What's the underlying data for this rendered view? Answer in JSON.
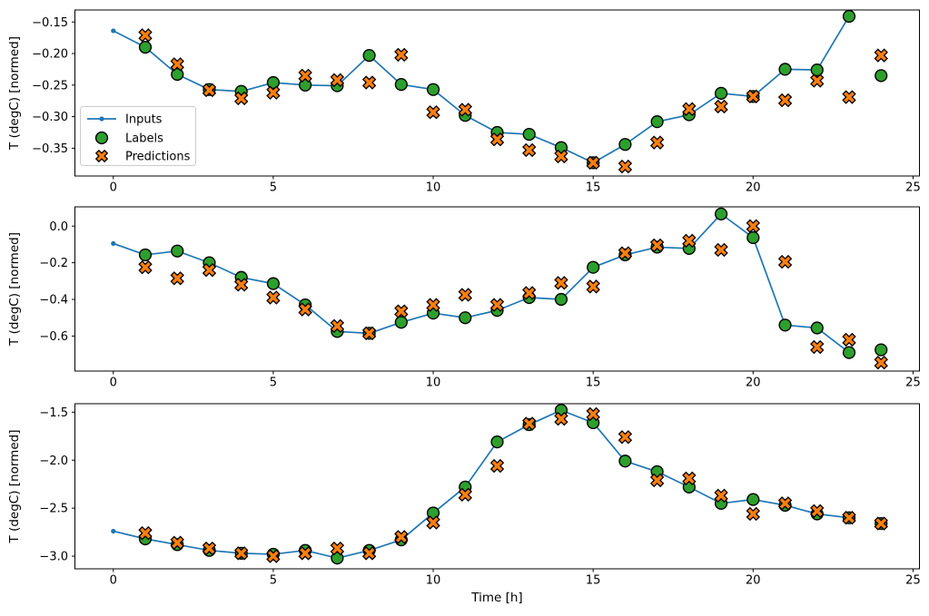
{
  "figure": {
    "ylabel": "T (degC) [normed]",
    "xlabel": "Time [h]",
    "legend": {
      "entries": [
        "Inputs",
        "Labels",
        "Predictions"
      ],
      "position": "center left"
    },
    "colors": {
      "inputs": "#1f77b4",
      "labels": "#2ca02c",
      "predictions": "#ff7f0e",
      "marker_edge": "#000000",
      "spine": "#000000",
      "legend_border": "#cccccc",
      "background": "#ffffff"
    }
  },
  "chart_data": [
    {
      "type": "line",
      "title": "",
      "ylabel": "T (degC) [normed]",
      "xlabel": "",
      "legend": true,
      "grid": false,
      "xlim": [
        -1.2,
        25.2
      ],
      "ylim": [
        -0.394,
        -0.131
      ],
      "xticks": [
        0,
        5,
        10,
        15,
        20,
        25
      ],
      "xtick_labels": [
        "0",
        "5",
        "10",
        "15",
        "20",
        "25"
      ],
      "yticks": [
        -0.15,
        -0.2,
        -0.25,
        -0.3,
        -0.35
      ],
      "ytick_labels": [
        "−0.15",
        "−0.20",
        "−0.25",
        "−0.30",
        "−0.35"
      ],
      "series": [
        {
          "name": "Inputs",
          "style": "line_with_dots",
          "x": [
            0,
            1,
            2,
            3,
            4,
            5,
            6,
            7,
            8,
            9,
            10,
            11,
            12,
            13,
            14,
            15,
            16,
            17,
            18,
            19,
            20,
            21,
            22,
            23
          ],
          "y": [
            -0.164,
            -0.19,
            -0.233,
            -0.257,
            -0.26,
            -0.246,
            -0.25,
            -0.251,
            -0.203,
            -0.249,
            -0.257,
            -0.298,
            -0.325,
            -0.328,
            -0.349,
            -0.373,
            -0.344,
            -0.308,
            -0.297,
            -0.263,
            -0.268,
            -0.225,
            -0.226,
            -0.141
          ]
        },
        {
          "name": "Labels",
          "style": "scatter_circle",
          "x": [
            1,
            2,
            3,
            4,
            5,
            6,
            7,
            8,
            9,
            10,
            11,
            12,
            13,
            14,
            15,
            16,
            17,
            18,
            19,
            20,
            21,
            22,
            23,
            24
          ],
          "y": [
            -0.19,
            -0.233,
            -0.257,
            -0.26,
            -0.246,
            -0.25,
            -0.251,
            -0.203,
            -0.249,
            -0.257,
            -0.298,
            -0.325,
            -0.328,
            -0.349,
            -0.373,
            -0.344,
            -0.308,
            -0.297,
            -0.263,
            -0.268,
            -0.225,
            -0.226,
            -0.141,
            -0.235
          ]
        },
        {
          "name": "Predictions",
          "style": "scatter_x",
          "x": [
            1,
            2,
            3,
            4,
            5,
            6,
            7,
            8,
            9,
            10,
            11,
            12,
            13,
            14,
            15,
            16,
            17,
            18,
            19,
            20,
            21,
            22,
            23,
            24
          ],
          "y": [
            -0.171,
            -0.217,
            -0.258,
            -0.271,
            -0.262,
            -0.235,
            -0.242,
            -0.246,
            -0.202,
            -0.293,
            -0.289,
            -0.336,
            -0.353,
            -0.363,
            -0.373,
            -0.379,
            -0.341,
            -0.288,
            -0.284,
            -0.268,
            -0.274,
            -0.243,
            -0.269,
            -0.203
          ]
        }
      ]
    },
    {
      "type": "line",
      "title": "",
      "ylabel": "T (degC) [normed]",
      "xlabel": "",
      "legend": false,
      "grid": false,
      "xlim": [
        -1.2,
        25.2
      ],
      "ylim": [
        -0.791,
        0.105
      ],
      "xticks": [
        0,
        5,
        10,
        15,
        20,
        25
      ],
      "xtick_labels": [
        "0",
        "5",
        "10",
        "15",
        "20",
        "25"
      ],
      "yticks": [
        0.0,
        -0.2,
        -0.4,
        -0.6
      ],
      "ytick_labels": [
        "0.0",
        "−0.2",
        "−0.4",
        "−0.6"
      ],
      "series": [
        {
          "name": "Inputs",
          "style": "line_with_dots",
          "x": [
            0,
            1,
            2,
            3,
            4,
            5,
            6,
            7,
            8,
            9,
            10,
            11,
            12,
            13,
            14,
            15,
            16,
            17,
            18,
            19,
            20,
            21,
            22,
            23
          ],
          "y": [
            -0.095,
            -0.157,
            -0.136,
            -0.2,
            -0.28,
            -0.314,
            -0.43,
            -0.575,
            -0.585,
            -0.525,
            -0.475,
            -0.5,
            -0.46,
            -0.39,
            -0.4,
            -0.225,
            -0.157,
            -0.115,
            -0.122,
            0.066,
            -0.063,
            -0.54,
            -0.556,
            -0.69
          ]
        },
        {
          "name": "Labels",
          "style": "scatter_circle",
          "x": [
            1,
            2,
            3,
            4,
            5,
            6,
            7,
            8,
            9,
            10,
            11,
            12,
            13,
            14,
            15,
            16,
            17,
            18,
            19,
            20,
            21,
            22,
            23,
            24
          ],
          "y": [
            -0.157,
            -0.136,
            -0.2,
            -0.28,
            -0.314,
            -0.43,
            -0.575,
            -0.585,
            -0.525,
            -0.475,
            -0.5,
            -0.46,
            -0.39,
            -0.4,
            -0.225,
            -0.157,
            -0.115,
            -0.122,
            0.066,
            -0.063,
            -0.54,
            -0.556,
            -0.69,
            -0.675
          ]
        },
        {
          "name": "Predictions",
          "style": "scatter_x",
          "x": [
            1,
            2,
            3,
            4,
            5,
            6,
            7,
            8,
            9,
            10,
            11,
            12,
            13,
            14,
            15,
            16,
            17,
            18,
            19,
            20,
            21,
            22,
            23,
            24
          ],
          "y": [
            -0.225,
            -0.285,
            -0.24,
            -0.32,
            -0.39,
            -0.455,
            -0.545,
            -0.585,
            -0.465,
            -0.43,
            -0.375,
            -0.43,
            -0.365,
            -0.31,
            -0.33,
            -0.148,
            -0.105,
            -0.08,
            -0.13,
            0.0,
            -0.195,
            -0.66,
            -0.62,
            -0.745
          ]
        }
      ]
    },
    {
      "type": "line",
      "title": "",
      "ylabel": "T (degC) [normed]",
      "xlabel": "Time [h]",
      "legend": false,
      "grid": false,
      "xlim": [
        -1.2,
        25.2
      ],
      "ylim": [
        -3.132,
        -1.412
      ],
      "xticks": [
        0,
        5,
        10,
        15,
        20,
        25
      ],
      "xtick_labels": [
        "0",
        "5",
        "10",
        "15",
        "20",
        "25"
      ],
      "yticks": [
        -1.5,
        -2.0,
        -2.5,
        -3.0
      ],
      "ytick_labels": [
        "−1.5",
        "−2.0",
        "−2.5",
        "−3.0"
      ],
      "series": [
        {
          "name": "Inputs",
          "style": "line_with_dots",
          "x": [
            0,
            1,
            2,
            3,
            4,
            5,
            6,
            7,
            8,
            9,
            10,
            11,
            12,
            13,
            14,
            15,
            16,
            17,
            18,
            19,
            20,
            21,
            22,
            23
          ],
          "y": [
            -2.74,
            -2.82,
            -2.88,
            -2.94,
            -2.97,
            -2.98,
            -2.94,
            -3.02,
            -2.94,
            -2.83,
            -2.55,
            -2.28,
            -1.81,
            -1.63,
            -1.48,
            -1.61,
            -2.01,
            -2.12,
            -2.28,
            -2.45,
            -2.41,
            -2.47,
            -2.56,
            -2.6
          ]
        },
        {
          "name": "Labels",
          "style": "scatter_circle",
          "x": [
            1,
            2,
            3,
            4,
            5,
            6,
            7,
            8,
            9,
            10,
            11,
            12,
            13,
            14,
            15,
            16,
            17,
            18,
            19,
            20,
            21,
            22,
            23,
            24
          ],
          "y": [
            -2.82,
            -2.88,
            -2.94,
            -2.97,
            -2.98,
            -2.94,
            -3.02,
            -2.94,
            -2.83,
            -2.55,
            -2.28,
            -1.81,
            -1.63,
            -1.48,
            -1.61,
            -2.01,
            -2.12,
            -2.28,
            -2.45,
            -2.41,
            -2.47,
            -2.56,
            -2.6,
            -2.66
          ]
        },
        {
          "name": "Predictions",
          "style": "scatter_x",
          "x": [
            1,
            2,
            3,
            4,
            5,
            6,
            7,
            8,
            9,
            10,
            11,
            12,
            13,
            14,
            15,
            16,
            17,
            18,
            19,
            20,
            21,
            22,
            23,
            24
          ],
          "y": [
            -2.76,
            -2.86,
            -2.92,
            -2.97,
            -3.0,
            -2.97,
            -2.92,
            -2.97,
            -2.8,
            -2.65,
            -2.36,
            -2.06,
            -1.62,
            -1.57,
            -1.52,
            -1.76,
            -2.21,
            -2.19,
            -2.37,
            -2.56,
            -2.45,
            -2.53,
            -2.6,
            -2.66
          ]
        }
      ]
    }
  ]
}
